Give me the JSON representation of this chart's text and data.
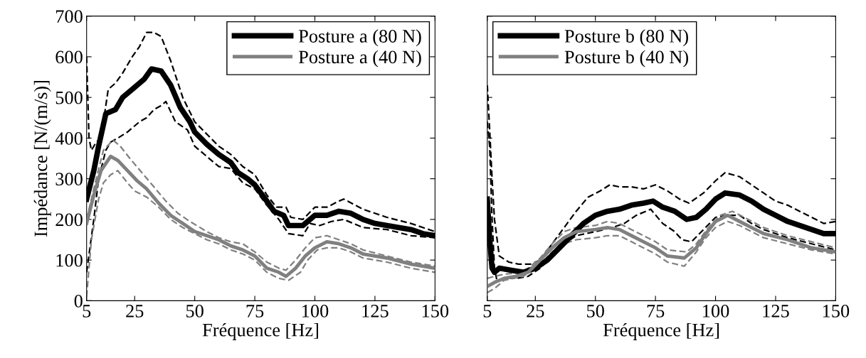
{
  "chart_data": [
    {
      "type": "line",
      "xlabel": "Fréquence [Hz]",
      "ylabel": "Impédance [N/(m/s)]",
      "xlim": [
        5,
        150
      ],
      "xticks": [
        5,
        25,
        50,
        75,
        100,
        125,
        150
      ],
      "ylim": [
        0,
        700
      ],
      "yticks": [
        0,
        100,
        200,
        300,
        400,
        500,
        600,
        700
      ],
      "legend": "top right",
      "grid": false,
      "series": [
        {
          "name": "Posture a (80 N)",
          "color": "#000000",
          "line_style": "solid",
          "x": [
            5,
            8,
            10,
            13,
            17,
            20,
            25,
            29,
            32,
            36,
            40,
            44,
            48,
            50,
            55,
            60,
            65,
            68,
            72,
            75,
            80,
            83,
            87,
            89,
            95,
            100,
            105,
            110,
            115,
            120,
            125,
            130,
            140,
            145,
            150
          ],
          "values": [
            250,
            320,
            380,
            460,
            470,
            500,
            525,
            545,
            570,
            565,
            530,
            475,
            440,
            415,
            385,
            360,
            340,
            315,
            300,
            285,
            245,
            220,
            210,
            185,
            185,
            210,
            210,
            220,
            215,
            200,
            190,
            185,
            175,
            165,
            160
          ]
        },
        {
          "name": "Posture a (40 N)",
          "color": "#808080",
          "line_style": "solid",
          "x": [
            5,
            8,
            11,
            15,
            18,
            22,
            26,
            30,
            35,
            40,
            45,
            50,
            55,
            60,
            65,
            70,
            75,
            80,
            85,
            88,
            92,
            96,
            100,
            105,
            110,
            115,
            120,
            130,
            140,
            150
          ],
          "values": [
            190,
            260,
            320,
            355,
            345,
            320,
            295,
            275,
            240,
            210,
            190,
            170,
            160,
            150,
            135,
            125,
            110,
            80,
            70,
            60,
            80,
            110,
            130,
            145,
            140,
            130,
            115,
            105,
            90,
            80
          ]
        },
        {
          "color": "#000000",
          "line_style": "dashed",
          "x": [
            5,
            6,
            7,
            9,
            11,
            14,
            17,
            20,
            24,
            27,
            30,
            33,
            36,
            40,
            45,
            50,
            55,
            60,
            65,
            70,
            75,
            80,
            84,
            88,
            90,
            95,
            100,
            105,
            110,
            112,
            120,
            130,
            140,
            150
          ],
          "values": [
            600,
            400,
            370,
            390,
            400,
            520,
            535,
            560,
            600,
            625,
            660,
            660,
            650,
            590,
            500,
            440,
            410,
            380,
            360,
            330,
            310,
            260,
            230,
            230,
            205,
            200,
            230,
            230,
            245,
            250,
            225,
            205,
            190,
            170
          ]
        },
        {
          "color": "#000000",
          "line_style": "dashed",
          "x": [
            5,
            8,
            10,
            13,
            15,
            18,
            22,
            27,
            30,
            33,
            36,
            38,
            42,
            47,
            50,
            55,
            60,
            65,
            70,
            75,
            80,
            85,
            89,
            95,
            98,
            102,
            107,
            112,
            120,
            130,
            140,
            150
          ],
          "values": [
            70,
            200,
            300,
            370,
            390,
            400,
            415,
            440,
            450,
            470,
            480,
            490,
            440,
            420,
            380,
            355,
            330,
            325,
            290,
            275,
            235,
            200,
            165,
            160,
            190,
            185,
            195,
            200,
            180,
            175,
            160,
            155
          ]
        },
        {
          "color": "#808080",
          "line_style": "dashed",
          "x": [
            5,
            9,
            12,
            16,
            19,
            23,
            28,
            33,
            38,
            43,
            48,
            55,
            60,
            65,
            70,
            75,
            80,
            85,
            88,
            92,
            96,
            100,
            105,
            110,
            115,
            120,
            130,
            140,
            150
          ],
          "values": [
            200,
            300,
            370,
            395,
            380,
            350,
            315,
            280,
            245,
            215,
            195,
            170,
            155,
            145,
            140,
            120,
            95,
            80,
            75,
            100,
            130,
            155,
            160,
            150,
            140,
            125,
            110,
            95,
            85
          ]
        },
        {
          "color": "#808080",
          "line_style": "dashed",
          "x": [
            5,
            7,
            10,
            12,
            15,
            18,
            22,
            25,
            30,
            35,
            40,
            45,
            50,
            55,
            60,
            65,
            70,
            75,
            80,
            85,
            89,
            94,
            97,
            101,
            105,
            110,
            115,
            120,
            130,
            140,
            150
          ],
          "values": [
            10,
            150,
            250,
            290,
            310,
            320,
            290,
            270,
            255,
            230,
            200,
            180,
            165,
            150,
            140,
            125,
            115,
            100,
            70,
            55,
            50,
            70,
            100,
            125,
            130,
            130,
            120,
            105,
            95,
            80,
            70
          ]
        }
      ]
    },
    {
      "type": "line",
      "xlabel": "Fréquence [Hz]",
      "xlim": [
        5,
        150
      ],
      "xticks": [
        5,
        25,
        50,
        75,
        100,
        125,
        150
      ],
      "ylim": [
        0,
        700
      ],
      "yticks": [
        0,
        100,
        200,
        300,
        400,
        500,
        600,
        700
      ],
      "tick_labels": "x",
      "legend": "top left",
      "grid": false,
      "series": [
        {
          "name": "Posture b (80 N)",
          "color": "#000000",
          "line_style": "solid",
          "x": [
            5,
            6,
            7,
            8,
            10,
            15,
            20,
            25,
            30,
            35,
            40,
            45,
            50,
            55,
            60,
            65,
            70,
            74,
            78,
            83,
            88,
            92,
            96,
            100,
            104,
            110,
            115,
            120,
            125,
            130,
            135,
            140,
            145,
            150
          ],
          "values": [
            250,
            150,
            80,
            70,
            80,
            75,
            70,
            80,
            100,
            130,
            160,
            190,
            210,
            220,
            225,
            235,
            240,
            245,
            230,
            220,
            200,
            205,
            225,
            250,
            265,
            260,
            245,
            225,
            210,
            195,
            185,
            175,
            165,
            165
          ]
        },
        {
          "name": "Posture b (40 N)",
          "color": "#808080",
          "line_style": "solid",
          "x": [
            5,
            8,
            12,
            17,
            22,
            27,
            32,
            37,
            42,
            50,
            55,
            60,
            65,
            70,
            75,
            80,
            87,
            92,
            96,
            100,
            105,
            110,
            115,
            120,
            130,
            140,
            150
          ],
          "values": [
            35,
            45,
            55,
            60,
            70,
            100,
            130,
            155,
            170,
            175,
            180,
            175,
            160,
            145,
            130,
            110,
            105,
            130,
            165,
            195,
            210,
            195,
            180,
            165,
            150,
            130,
            120
          ]
        },
        {
          "color": "#000000",
          "line_style": "dashed",
          "x": [
            5,
            6,
            7,
            8,
            10,
            14,
            18,
            23,
            27,
            32,
            37,
            42,
            47,
            52,
            56,
            60,
            65,
            70,
            75,
            80,
            85,
            89,
            95,
            100,
            104,
            110,
            115,
            120,
            125,
            130,
            135,
            140,
            145,
            150
          ],
          "values": [
            530,
            420,
            300,
            200,
            110,
            95,
            90,
            90,
            100,
            140,
            180,
            220,
            255,
            270,
            285,
            280,
            280,
            275,
            285,
            270,
            250,
            240,
            265,
            295,
            315,
            305,
            285,
            265,
            245,
            235,
            220,
            205,
            190,
            195
          ]
        },
        {
          "color": "#000000",
          "line_style": "dashed",
          "x": [
            5,
            6,
            7,
            8,
            9,
            12,
            17,
            22,
            27,
            32,
            37,
            42,
            50,
            57,
            62,
            67,
            73,
            78,
            83,
            86,
            90,
            95,
            100,
            105,
            110,
            115,
            120,
            130,
            140,
            150
          ],
          "values": [
            440,
            380,
            200,
            80,
            50,
            55,
            55,
            60,
            80,
            110,
            140,
            160,
            170,
            180,
            190,
            210,
            225,
            190,
            170,
            150,
            145,
            175,
            205,
            210,
            210,
            190,
            175,
            155,
            140,
            125
          ]
        },
        {
          "color": "#808080",
          "line_style": "dashed",
          "x": [
            5,
            8,
            12,
            20,
            27,
            32,
            37,
            42,
            50,
            55,
            60,
            65,
            70,
            75,
            80,
            88,
            92,
            97,
            102,
            107,
            112,
            120,
            130,
            140,
            150
          ],
          "values": [
            55,
            60,
            65,
            70,
            105,
            140,
            170,
            180,
            185,
            195,
            190,
            175,
            160,
            145,
            125,
            120,
            140,
            180,
            210,
            220,
            205,
            180,
            160,
            145,
            130
          ]
        },
        {
          "color": "#808080",
          "line_style": "dashed",
          "x": [
            5,
            8,
            12,
            20,
            27,
            32,
            37,
            42,
            50,
            55,
            60,
            65,
            70,
            75,
            80,
            87,
            92,
            96,
            100,
            105,
            110,
            115,
            120,
            130,
            140,
            150
          ],
          "values": [
            20,
            30,
            50,
            60,
            90,
            120,
            140,
            150,
            155,
            160,
            160,
            145,
            130,
            115,
            95,
            85,
            120,
            155,
            180,
            195,
            185,
            170,
            155,
            140,
            125,
            115
          ]
        }
      ]
    }
  ]
}
